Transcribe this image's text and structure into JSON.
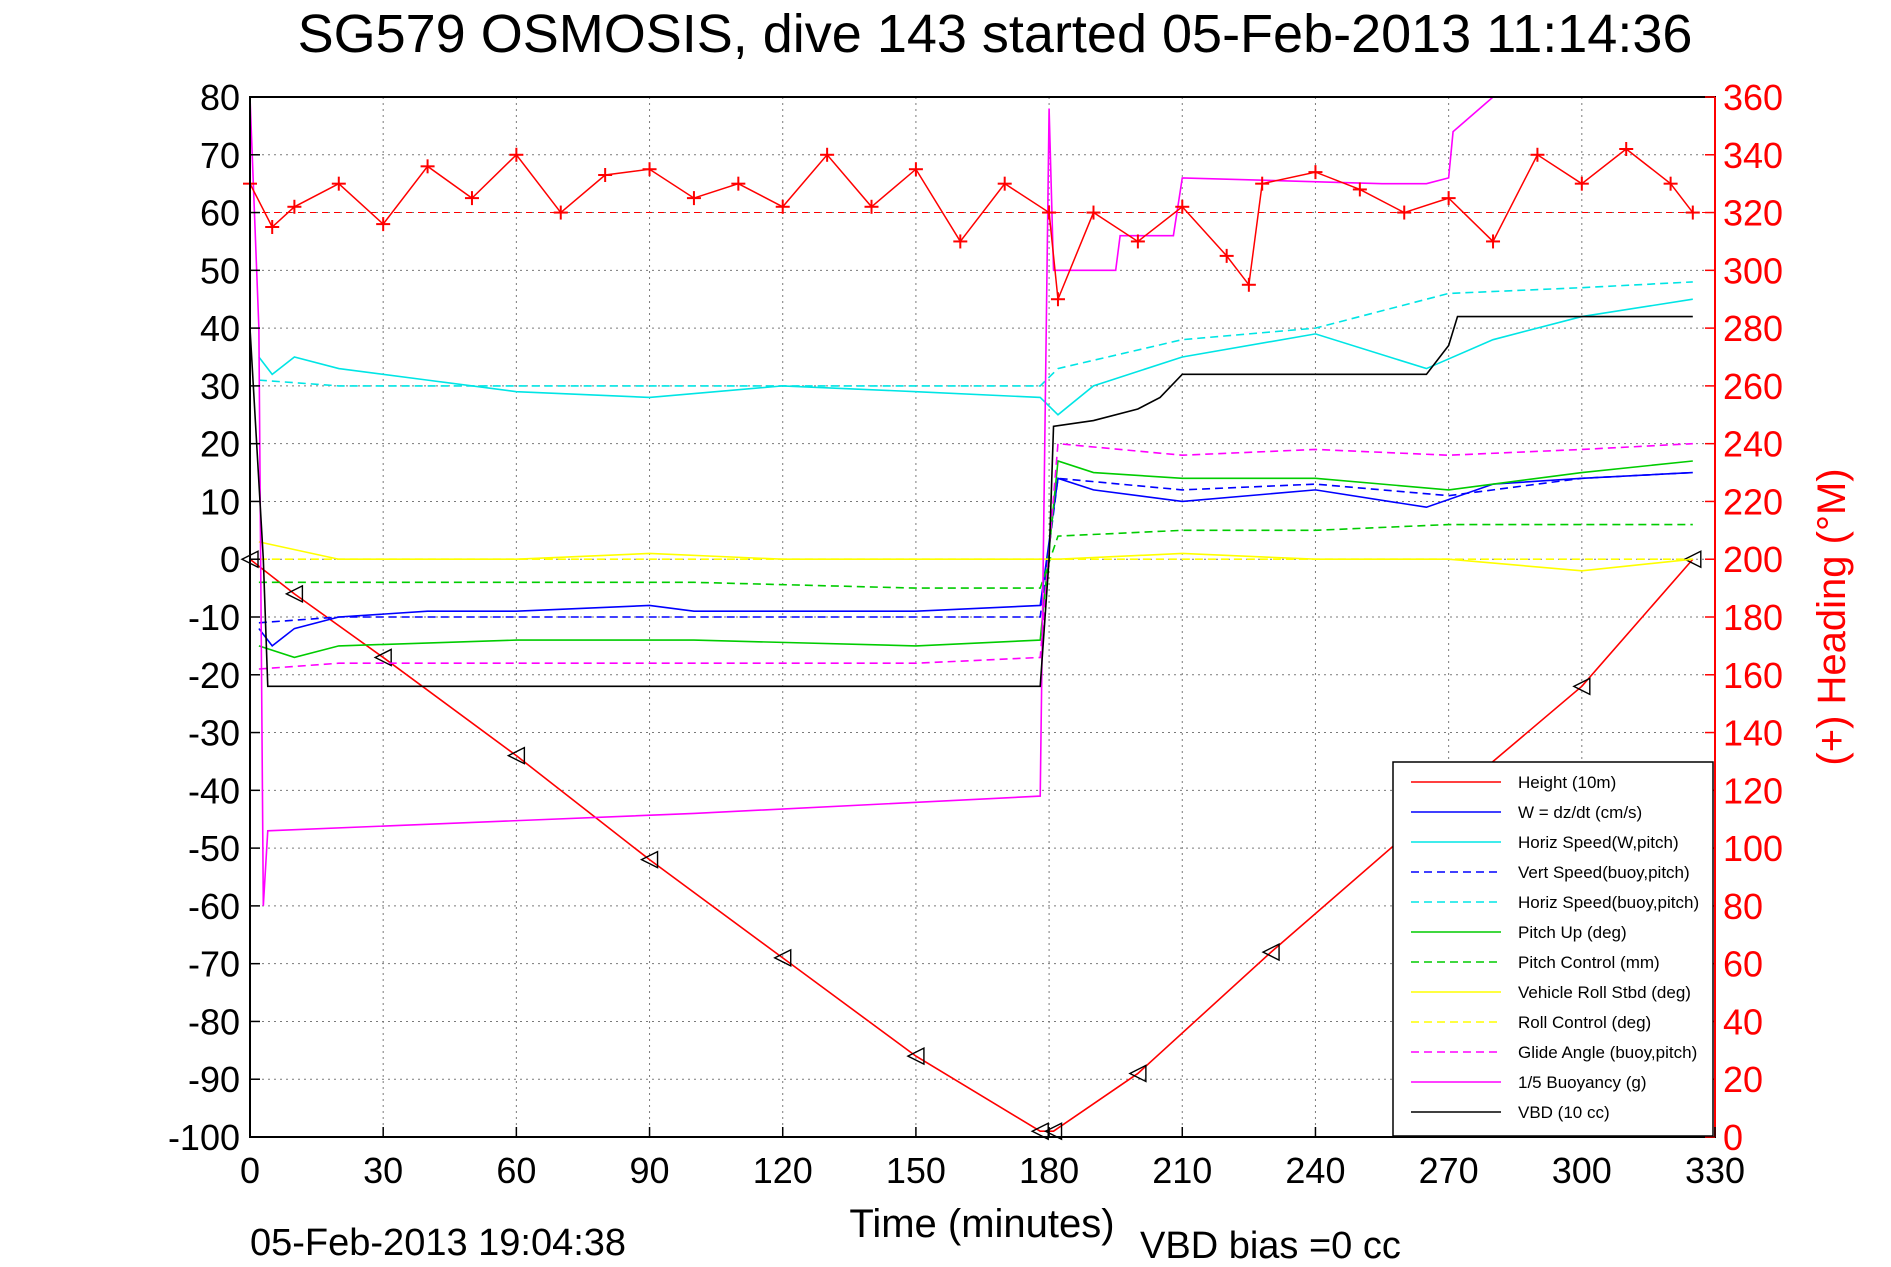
{
  "chart_data": {
    "type": "line",
    "title": "SG579 OSMOSIS, dive 143 started 05-Feb-2013 11:14:36",
    "xlabel": "Time (minutes)",
    "ylabel": "",
    "y2label": "(+) Heading (°M)",
    "xlim": [
      0,
      330
    ],
    "ylim": [
      -100,
      80
    ],
    "y2lim": [
      0,
      360
    ],
    "xticks": [
      0,
      30,
      60,
      90,
      120,
      150,
      180,
      210,
      240,
      270,
      300,
      330
    ],
    "yticks": [
      80,
      70,
      60,
      50,
      40,
      30,
      20,
      10,
      0,
      -10,
      -20,
      -30,
      -40,
      -50,
      -60,
      -70,
      -80,
      -90,
      -100
    ],
    "y2ticks": [
      360,
      340,
      320,
      300,
      280,
      260,
      240,
      220,
      200,
      180,
      160,
      140,
      120,
      100,
      80,
      60,
      40,
      20,
      0
    ],
    "grid": true,
    "legend_position": "lower-right",
    "footer_left": "05-Feb-2013 19:04:38",
    "footer_right": "VBD bias =0 cc",
    "colors": {
      "red": "#ff0000",
      "blue": "#0000ff",
      "cyan": "#00e5e5",
      "green": "#00cc00",
      "yellow": "#ffff00",
      "magenta": "#ff00ff",
      "black": "#000000"
    },
    "series": [
      {
        "name": "Height (10m)",
        "color": "#ff0000",
        "dash": "solid",
        "x": [
          0,
          10,
          30,
          60,
          90,
          120,
          150,
          178,
          181,
          200,
          230,
          260,
          300,
          325
        ],
        "y": [
          0,
          -6,
          -17,
          -34,
          -52,
          -69,
          -86,
          -99,
          -99,
          -89,
          -68,
          -48,
          -22,
          0
        ]
      },
      {
        "name": "W = dz/dt (cm/s)",
        "color": "#0000ff",
        "dash": "solid",
        "x": [
          2,
          5,
          10,
          20,
          40,
          60,
          90,
          100,
          120,
          150,
          178,
          182,
          190,
          210,
          240,
          265,
          280,
          300,
          325
        ],
        "y": [
          -12,
          -15,
          -12,
          -10,
          -9,
          -9,
          -8,
          -9,
          -9,
          -9,
          -8,
          14,
          12,
          10,
          12,
          9,
          13,
          14,
          15
        ]
      },
      {
        "name": "Horiz Speed(W,pitch)",
        "color": "#00e5e5",
        "dash": "solid",
        "x": [
          2,
          5,
          10,
          20,
          40,
          60,
          90,
          120,
          150,
          178,
          182,
          190,
          210,
          240,
          265,
          280,
          300,
          325
        ],
        "y": [
          35,
          32,
          35,
          33,
          31,
          29,
          28,
          30,
          29,
          28,
          25,
          30,
          35,
          39,
          33,
          38,
          42,
          45
        ]
      },
      {
        "name": "Vert Speed(buoy,pitch)",
        "color": "#0000ff",
        "dash": "dashed",
        "x": [
          2,
          20,
          60,
          100,
          150,
          178,
          182,
          210,
          240,
          270,
          300,
          325
        ],
        "y": [
          -11,
          -10,
          -10,
          -10,
          -10,
          -10,
          14,
          12,
          13,
          11,
          14,
          15
        ]
      },
      {
        "name": "Horiz Speed(buoy,pitch)",
        "color": "#00e5e5",
        "dash": "dashed",
        "x": [
          2,
          20,
          60,
          100,
          150,
          178,
          182,
          210,
          240,
          270,
          300,
          325
        ],
        "y": [
          31,
          30,
          30,
          30,
          30,
          30,
          33,
          38,
          40,
          46,
          47,
          48
        ]
      },
      {
        "name": "Pitch Up (deg)",
        "color": "#00cc00",
        "dash": "solid",
        "x": [
          2,
          10,
          20,
          60,
          100,
          150,
          178,
          182,
          190,
          210,
          240,
          270,
          300,
          325
        ],
        "y": [
          -15,
          -17,
          -15,
          -14,
          -14,
          -15,
          -14,
          17,
          15,
          14,
          14,
          12,
          15,
          17
        ]
      },
      {
        "name": "Pitch Control (mm)",
        "color": "#00cc00",
        "dash": "dashed",
        "x": [
          2,
          20,
          60,
          100,
          150,
          178,
          182,
          210,
          240,
          270,
          300,
          325
        ],
        "y": [
          -4,
          -4,
          -4,
          -4,
          -5,
          -5,
          4,
          5,
          5,
          6,
          6,
          6
        ]
      },
      {
        "name": "Vehicle Roll Stbd (deg)",
        "color": "#ffff00",
        "dash": "solid",
        "x": [
          2,
          20,
          40,
          60,
          90,
          120,
          150,
          178,
          182,
          210,
          240,
          270,
          300,
          325
        ],
        "y": [
          3,
          0,
          0,
          0,
          1,
          0,
          0,
          0,
          0,
          1,
          0,
          0,
          -2,
          0
        ]
      },
      {
        "name": "Roll Control (deg)",
        "color": "#ffff00",
        "dash": "dashed",
        "x": [
          2,
          60,
          120,
          178,
          182,
          240,
          325
        ],
        "y": [
          0,
          0,
          0,
          0,
          0,
          0,
          0
        ]
      },
      {
        "name": "Glide Angle (buoy,pitch)",
        "color": "#ff00ff",
        "dash": "dashed",
        "x": [
          2,
          20,
          60,
          100,
          150,
          178,
          182,
          210,
          240,
          270,
          300,
          325
        ],
        "y": [
          -19,
          -18,
          -18,
          -18,
          -18,
          -17,
          20,
          18,
          19,
          18,
          19,
          20
        ]
      },
      {
        "name": "1/5 Buoyancy (g)",
        "color": "#ff00ff",
        "dash": "solid",
        "x": [
          0,
          2,
          3,
          4,
          100,
          178,
          180,
          181,
          195,
          196,
          208,
          210,
          255,
          265,
          270,
          271,
          280
        ],
        "y": [
          80,
          40,
          -60,
          -47,
          -44,
          -41,
          78,
          50,
          50,
          56,
          56,
          66,
          65,
          65,
          66,
          74,
          80
        ]
      },
      {
        "name": "VBD (10 cc)",
        "color": "#000000",
        "dash": "solid",
        "x": [
          0,
          3,
          4,
          178,
          180,
          181,
          190,
          200,
          205,
          210,
          250,
          265,
          270,
          272,
          325
        ],
        "y": [
          40,
          0,
          -22,
          -22,
          0,
          23,
          24,
          26,
          28,
          32,
          32,
          32,
          37,
          42,
          42
        ]
      },
      {
        "name": "",
        "axis": "right",
        "marker": "+",
        "color": "#ff0000",
        "x": [
          0,
          5,
          10,
          20,
          30,
          40,
          50,
          60,
          70,
          80,
          90,
          100,
          110,
          120,
          130,
          140,
          150,
          160,
          170,
          180,
          182,
          190,
          200,
          210,
          220,
          225,
          228,
          240,
          250,
          260,
          270,
          280,
          290,
          300,
          310,
          320,
          325
        ],
        "y": [
          330,
          315,
          322,
          330,
          316,
          336,
          325,
          340,
          320,
          333,
          335,
          325,
          330,
          322,
          340,
          322,
          335,
          310,
          330,
          320,
          290,
          320,
          310,
          322,
          305,
          295,
          330,
          334,
          328,
          320,
          325,
          310,
          340,
          330,
          342,
          330,
          320
        ]
      }
    ],
    "heading_reference_line": 320
  }
}
